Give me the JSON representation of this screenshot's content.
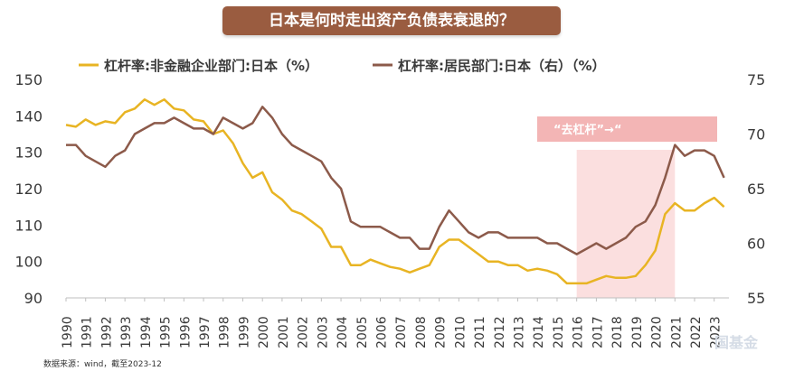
{
  "chart_data": {
    "type": "line",
    "title": "日本是何时走出资产负债表衰退的？",
    "source": "数据来源：wind，截至2023-12",
    "x": [
      1990,
      1990.5,
      1991,
      1991.5,
      1992,
      1992.5,
      1993,
      1993.5,
      1994,
      1994.5,
      1995,
      1995.5,
      1996,
      1996.5,
      1997,
      1997.5,
      1998,
      1998.5,
      1999,
      1999.5,
      2000,
      2000.5,
      2001,
      2001.5,
      2002,
      2002.5,
      2003,
      2003.5,
      2004,
      2004.5,
      2005,
      2005.5,
      2006,
      2006.5,
      2007,
      2007.5,
      2008,
      2008.5,
      2009,
      2009.5,
      2010,
      2010.5,
      2011,
      2011.5,
      2012,
      2012.5,
      2013,
      2013.5,
      2014,
      2014.5,
      2015,
      2015.5,
      2016,
      2016.5,
      2017,
      2017.5,
      2018,
      2018.5,
      2019,
      2019.5,
      2020,
      2020.5,
      2021,
      2021.5,
      2022,
      2022.5,
      2023,
      2023.5
    ],
    "x_tick_labels": [
      "1990",
      "1991",
      "1992",
      "1993",
      "1994",
      "1995",
      "1996",
      "1997",
      "1998",
      "1999",
      "2000",
      "2001",
      "2002",
      "2003",
      "2004",
      "2005",
      "2006",
      "2007",
      "2008",
      "2009",
      "2010",
      "2011",
      "2012",
      "2013",
      "2014",
      "2015",
      "2016",
      "2017",
      "2018",
      "2019",
      "2020",
      "2021",
      "2022",
      "2023"
    ],
    "xlim": [
      1990,
      2023.75
    ],
    "y_left": {
      "lim": [
        90,
        150
      ],
      "ticks": [
        "90",
        "100",
        "110",
        "120",
        "130",
        "140",
        "150"
      ]
    },
    "y_right": {
      "lim": [
        55,
        75
      ],
      "ticks": [
        "55",
        "60",
        "65",
        "70",
        "75"
      ]
    },
    "series": [
      {
        "name": "杠杆率:非金融企业部门:日本（%）",
        "axis": "left",
        "color": "#e8b423",
        "values": [
          137.5,
          137,
          139,
          137.5,
          138.5,
          138,
          141,
          142,
          144.5,
          143,
          144.5,
          142,
          141.5,
          139,
          138.5,
          135,
          136,
          132.5,
          127,
          123,
          124.5,
          119,
          117,
          114,
          113,
          111,
          109,
          104,
          104,
          99,
          99,
          100.5,
          99.5,
          98.5,
          98,
          97,
          98,
          99,
          104,
          106,
          106,
          104,
          102,
          100,
          100,
          99,
          99,
          97.5,
          98,
          97.5,
          96.5,
          94,
          94,
          94,
          95,
          96,
          95.5,
          95.5,
          96,
          99,
          103,
          113,
          116,
          114,
          114,
          116,
          117.5,
          115
        ]
      },
      {
        "name": "杠杆率:居民部门:日本（右）（%）",
        "axis": "right",
        "color": "#8c5a4a",
        "values": [
          69,
          69,
          68,
          67.5,
          67,
          68,
          68.5,
          70,
          70.5,
          71,
          71,
          71.5,
          71,
          70.5,
          70.5,
          70,
          71.5,
          71,
          70.5,
          71,
          72.5,
          71.5,
          70,
          69,
          68.5,
          68,
          67.5,
          66,
          65,
          62,
          61.5,
          61.5,
          61.5,
          61,
          60.5,
          60.5,
          59.5,
          59.5,
          61.5,
          63,
          62,
          61,
          60.5,
          61,
          61,
          60.5,
          60.5,
          60.5,
          60.5,
          60,
          60,
          59.5,
          59,
          59.5,
          60,
          59.5,
          60,
          60.5,
          61.5,
          62,
          63.5,
          66,
          69,
          68,
          68.5,
          68.5,
          68,
          66
        ]
      }
    ],
    "legend_position": "top",
    "annotation": {
      "text": "“去杠杆”→“",
      "x_range": [
        2016,
        2021
      ]
    }
  },
  "watermark": "国基金"
}
